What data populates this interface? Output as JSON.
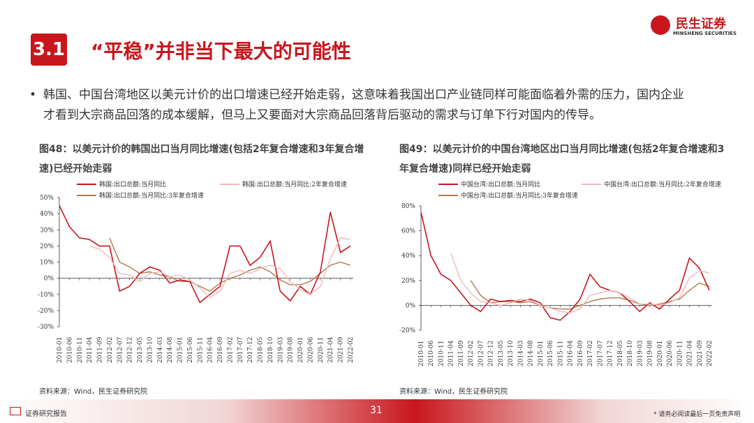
{
  "header": {
    "section": "3.1",
    "title": "“平稳”并非当下最大的可能性",
    "logo_cn": "民生证券",
    "logo_en": "MINSHENG SECURITIES"
  },
  "bullet": {
    "lines": [
      "韩国、中国台湾地区以美元计价的出口增速已经开始走弱，这意味着我国出口产业链同样可能面临着外需的压力，国内企业",
      "才看到大宗商品回落的成本缓解，但马上又要面对大宗商品回落背后驱动的需求与订单下行对国内的传导。"
    ],
    "marker": "•"
  },
  "chart_data": [
    {
      "type": "line",
      "title": "图48：以美元计价的韩国出口当月同比增速(包括2年复合增速和3年复合增速)已经开始走弱",
      "source": "资料来源：Wind，民生证券研究院",
      "categories": [
        "2010-01",
        "2010-06",
        "2010-11",
        "2011-04",
        "2011-09",
        "2012-02",
        "2012-07",
        "2012-12",
        "2013-05",
        "2013-10",
        "2014-03",
        "2014-08",
        "2015-01",
        "2015-06",
        "2015-11",
        "2016-04",
        "2016-09",
        "2017-02",
        "2017-07",
        "2017-12",
        "2018-05",
        "2018-10",
        "2019-03",
        "2019-08",
        "2020-01",
        "2020-06",
        "2020-11",
        "2021-04",
        "2021-09",
        "2022-02"
      ],
      "series": [
        {
          "name": "韩国:出口总额:当月同比",
          "color": "#c8161d",
          "values": [
            45,
            32,
            25,
            24,
            20,
            20,
            -8,
            -5,
            3,
            7,
            5,
            -3,
            -1,
            -2,
            -15,
            -10,
            -5,
            20,
            20,
            8,
            13,
            23,
            -8,
            -14,
            -5,
            -10,
            4,
            41,
            16,
            20
          ]
        },
        {
          "name": "韩国:出口总额:当月同比:2年复合增速",
          "color": "#f2b8b8",
          "values": [
            null,
            null,
            null,
            20,
            18,
            13,
            3,
            2,
            -2,
            3,
            4,
            1,
            2,
            -1,
            -6,
            -12,
            -8,
            3,
            5,
            3,
            6,
            8,
            6,
            -2,
            -7,
            -10,
            -5,
            12,
            25,
            24
          ]
        },
        {
          "name": "韩国:出口总额:当月同比:3年复合增速",
          "color": "#b07a4a",
          "values": [
            null,
            null,
            null,
            null,
            null,
            25,
            10,
            7,
            3,
            4,
            2,
            1,
            -2,
            -2,
            -5,
            -8,
            -3,
            0,
            2,
            5,
            7,
            4,
            -1,
            -4,
            -4,
            -2,
            3,
            8,
            10,
            8
          ]
        }
      ],
      "ylim": [
        -30,
        50
      ],
      "yticks": [
        {
          "value": -30,
          "label": "-30%"
        },
        {
          "value": -20,
          "label": "-20%"
        },
        {
          "value": -10,
          "label": "-10%"
        },
        {
          "value": 0,
          "label": "0%"
        },
        {
          "value": 10,
          "label": "10%"
        },
        {
          "value": 20,
          "label": "20%"
        },
        {
          "value": 30,
          "label": "30%"
        },
        {
          "value": 40,
          "label": "40%"
        },
        {
          "value": 50,
          "label": "50%"
        }
      ]
    },
    {
      "type": "line",
      "title": "图49：以美元计价的中国台湾地区出口当月同比增速(包括2年复合增速和3年复合增速)同样已经开始走弱",
      "source": "资料来源：Wind，民生证券研究院",
      "categories": [
        "2010-01",
        "2010-06",
        "2010-11",
        "2011-04",
        "2011-09",
        "2012-02",
        "2012-07",
        "2012-12",
        "2013-05",
        "2013-10",
        "2014-03",
        "2014-08",
        "2015-01",
        "2015-06",
        "2015-11",
        "2016-04",
        "2016-09",
        "2017-02",
        "2017-07",
        "2017-12",
        "2018-05",
        "2018-10",
        "2019-03",
        "2019-08",
        "2020-01",
        "2020-06",
        "2020-11",
        "2021-04",
        "2021-09",
        "2022-02"
      ],
      "series": [
        {
          "name": "中国台湾:出口总额:当月同比",
          "color": "#c8161d",
          "values": [
            75,
            40,
            25,
            20,
            10,
            0,
            -5,
            5,
            3,
            4,
            3,
            5,
            2,
            -10,
            -12,
            -5,
            5,
            25,
            15,
            12,
            10,
            3,
            -5,
            2,
            -3,
            5,
            12,
            38,
            30,
            12
          ]
        },
        {
          "name": "中国台湾:出口总额:当月同比:2年复合增速",
          "color": "#f2b8b8",
          "values": [
            null,
            null,
            null,
            42,
            20,
            10,
            3,
            2,
            0,
            2,
            5,
            4,
            0,
            -2,
            -5,
            -6,
            -3,
            8,
            10,
            12,
            10,
            6,
            1,
            1,
            0,
            2,
            6,
            22,
            28,
            26
          ]
        },
        {
          "name": "中国台湾:出口总额:当月同比:3年复合增速",
          "color": "#b07a4a",
          "values": [
            null,
            null,
            null,
            null,
            null,
            20,
            8,
            2,
            3,
            3,
            2,
            3,
            0,
            -2,
            -3,
            -3,
            0,
            3,
            5,
            6,
            6,
            4,
            1,
            0,
            1,
            3,
            5,
            12,
            18,
            15
          ]
        }
      ],
      "ylim": [
        -20,
        80
      ],
      "yticks": [
        {
          "value": -20,
          "label": "-20%"
        },
        {
          "value": 0,
          "label": "0%"
        },
        {
          "value": 20,
          "label": "20%"
        },
        {
          "value": 40,
          "label": "40%"
        },
        {
          "value": 60,
          "label": "60%"
        },
        {
          "value": 80,
          "label": "80%"
        }
      ]
    }
  ],
  "footer": {
    "left": "证券研究报告",
    "page": "31",
    "right": "* 请务必阅读最后一页免责声明"
  }
}
